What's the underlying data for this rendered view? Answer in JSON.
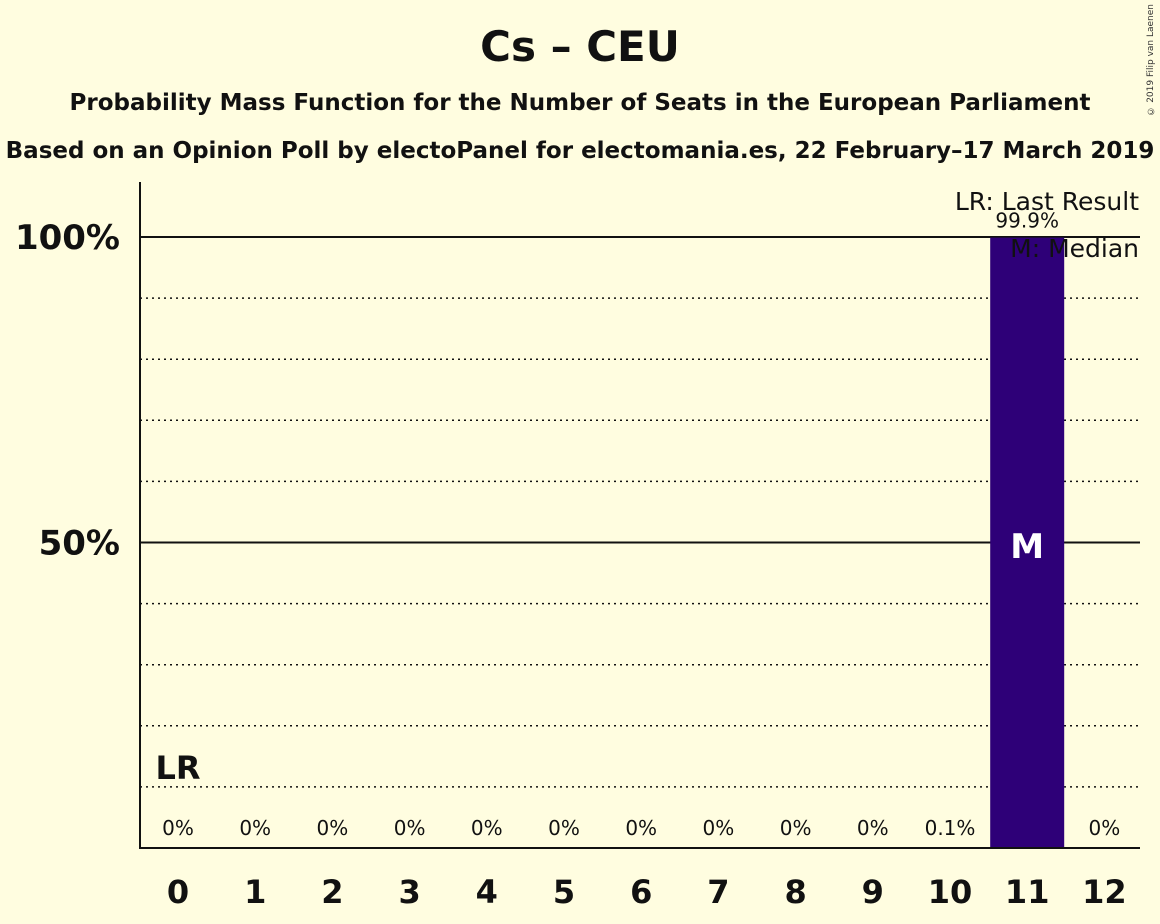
{
  "title": "Cs – CEU",
  "subtitle_1": "Probability Mass Function for the Number of Seats in the European Parliament",
  "subtitle_2": "Based on an Opinion Poll by electoPanel for electomania.es, 22 February–17 March 2019",
  "copyright": "© 2019 Filip van Laenen",
  "legend": {
    "last_result": "LR: Last Result",
    "median": "M: Median"
  },
  "markers": {
    "last_result_label": "LR",
    "last_result_seat": 0,
    "median_label": "M",
    "median_seat": 11
  },
  "colors": {
    "background": "#fffde0",
    "bar": "#2e0078",
    "text": "#111111"
  },
  "chart_data": {
    "type": "bar",
    "title": "Cs – CEU",
    "categories": [
      "0",
      "1",
      "2",
      "3",
      "4",
      "5",
      "6",
      "7",
      "8",
      "9",
      "10",
      "11",
      "12"
    ],
    "values": [
      0,
      0,
      0,
      0,
      0,
      0,
      0,
      0,
      0,
      0,
      0.1,
      99.9,
      0
    ],
    "data_labels": [
      "0%",
      "0%",
      "0%",
      "0%",
      "0%",
      "0%",
      "0%",
      "0%",
      "0%",
      "0%",
      "0.1%",
      "99.9%",
      "0%"
    ],
    "ylim": [
      0,
      100
    ],
    "yticks": [
      {
        "value": 50,
        "label": "50%"
      },
      {
        "value": 100,
        "label": "100%"
      }
    ],
    "minor_gridlines": [
      10,
      20,
      30,
      40,
      60,
      70,
      80,
      90
    ],
    "grid": true,
    "legend_position": "top-right"
  }
}
